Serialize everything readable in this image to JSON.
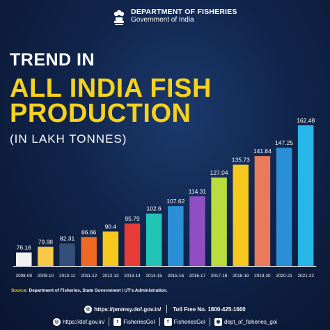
{
  "header": {
    "dept_name": "DEPARTMENT OF FISHERIES",
    "dept_sub": "Government of India"
  },
  "title": {
    "line1": "TREND IN",
    "line2": "ALL INDIA FISH",
    "line3": "PRODUCTION",
    "unit": "(IN LAKH TONNES)"
  },
  "chart_data": {
    "type": "bar",
    "categories": [
      "2008-09",
      "2009-10",
      "2010-11",
      "2011-12",
      "2012-13",
      "2013-14",
      "2014-15",
      "2015-16",
      "2016-17",
      "2017-18",
      "2018-19",
      "2019-20",
      "2020-21",
      "2021-22"
    ],
    "values": [
      76.16,
      79.98,
      82.31,
      86.66,
      90.4,
      95.79,
      102.6,
      107.62,
      114.31,
      127.04,
      135.73,
      141.64,
      147.25,
      162.48
    ],
    "value_labels": [
      "76.16",
      "79.98",
      "82.31",
      "86.66",
      "90.4",
      "95.79",
      "102.6",
      "107.62",
      "114.31",
      "127.04",
      "135.73",
      "141.64",
      "147.25",
      "162.48"
    ],
    "colors": [
      "#f2f2f2",
      "#f7c948",
      "#334f7a",
      "#ee6a24",
      "#f6c71d",
      "#e73c37",
      "#23c4b6",
      "#2a8fd6",
      "#8f4fc2",
      "#b8dd3c",
      "#f6c71d",
      "#ea7a5c",
      "#2a8fd6",
      "#27b6e8"
    ],
    "title": "TREND IN ALL INDIA FISH PRODUCTION",
    "ylabel": "",
    "ylim": [
      0,
      170
    ]
  },
  "source": {
    "label": "Source:",
    "text": "Department of Fisheries, State Government / UT's Administration."
  },
  "footer": {
    "url1": "https://pmmsy.dof.gov.in/",
    "tollfree": "Toll Free No. 1800-425-1660",
    "url2": "https://dof.gov.in/",
    "twitter": "FisheriesGoI",
    "facebook": "FisheriesGoI",
    "instagram": "dept_of_fisheries_goi"
  }
}
